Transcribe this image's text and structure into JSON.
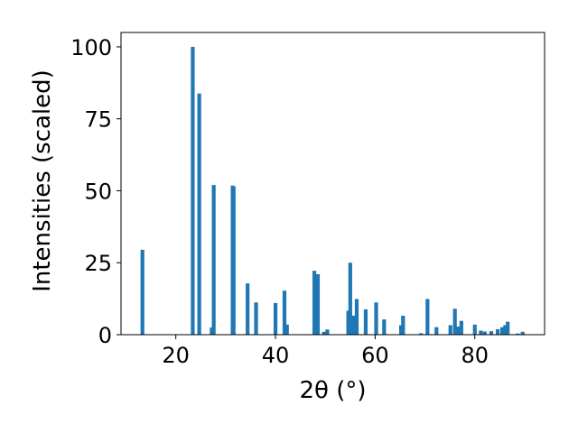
{
  "chart_data": {
    "type": "bar",
    "xlabel": "2θ (°)",
    "ylabel": "Intensities (scaled)",
    "xlim": [
      9,
      94
    ],
    "ylim": [
      0,
      105
    ],
    "x_ticks": [
      20,
      40,
      60,
      80
    ],
    "y_ticks": [
      0,
      25,
      50,
      75,
      100
    ],
    "bar_color": "#1f77b4",
    "grid": false,
    "x": [
      13.3,
      23.4,
      24.7,
      27.2,
      27.6,
      31.4,
      31.6,
      34.4,
      36.1,
      40.0,
      41.8,
      42.3,
      47.8,
      48.5,
      49.7,
      50.4,
      54.6,
      55.0,
      55.7,
      56.3,
      58.1,
      60.2,
      61.8,
      65.2,
      65.6,
      69.2,
      70.5,
      72.3,
      75.1,
      76.0,
      76.7,
      77.3,
      80.0,
      81.2,
      82.0,
      83.3,
      84.6,
      85.5,
      86.1,
      86.6,
      88.6,
      89.6
    ],
    "values": [
      29.5,
      100.0,
      83.8,
      2.5,
      52.0,
      51.8,
      51.5,
      17.8,
      11.2,
      11.0,
      15.3,
      3.5,
      22.2,
      21.0,
      1.0,
      1.8,
      8.3,
      25.0,
      6.6,
      12.4,
      8.8,
      11.2,
      5.3,
      3.3,
      6.6,
      0.5,
      12.4,
      2.6,
      3.3,
      9.0,
      2.8,
      4.8,
      3.5,
      1.4,
      1.1,
      1.2,
      1.9,
      2.6,
      3.3,
      4.5,
      0.4,
      1.0
    ]
  }
}
